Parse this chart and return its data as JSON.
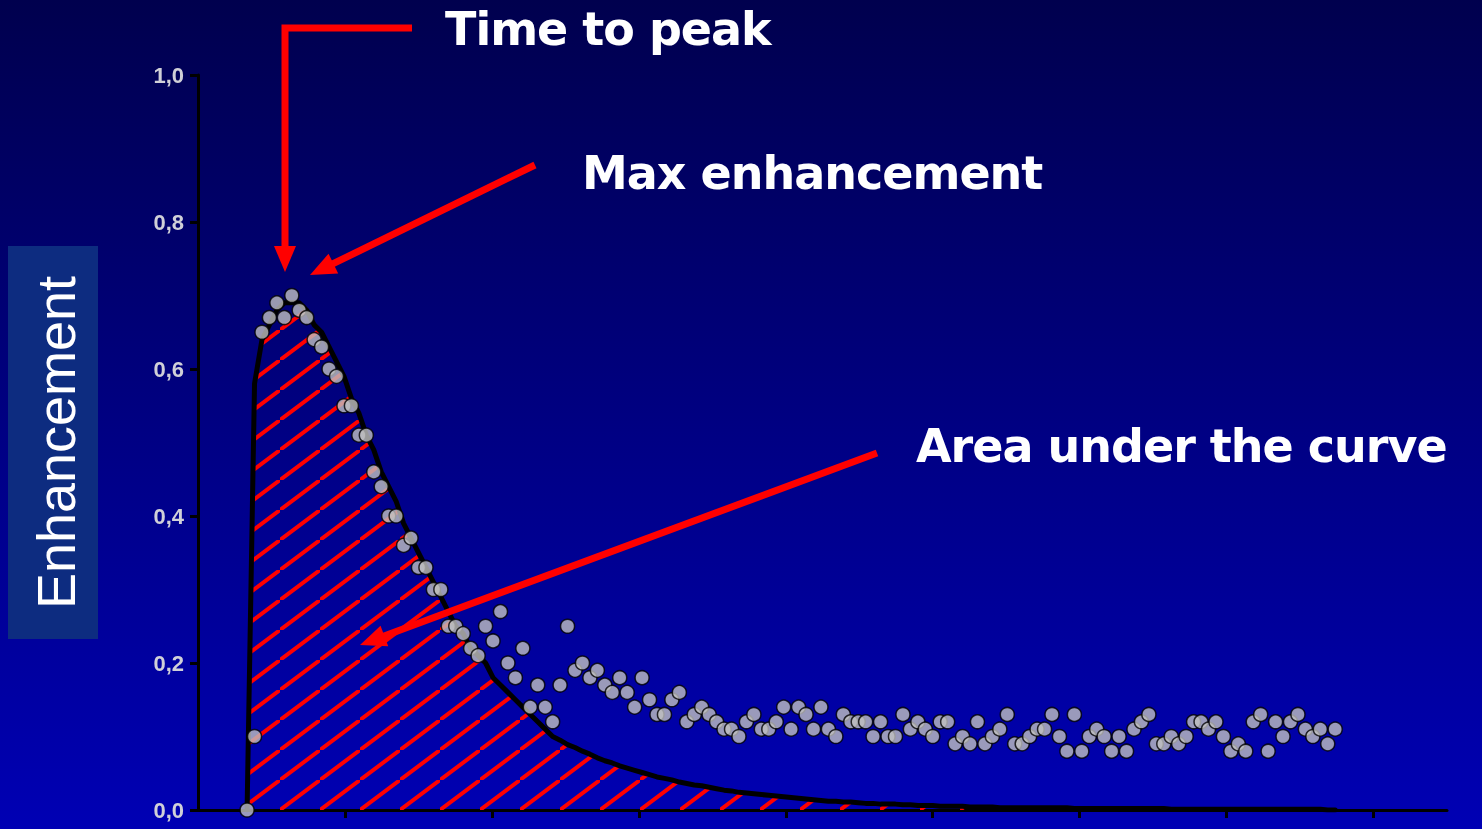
{
  "chart_data": {
    "type": "scatter",
    "ylabel": "Enhancement",
    "annotations": [
      "Time to peak",
      "Max enhancement",
      "Area under the curve"
    ],
    "categories": [
      null,
      null,
      null,
      null,
      null,
      null,
      null,
      null,
      null,
      null,
      null,
      null,
      null,
      null,
      null,
      null,
      null,
      null,
      null,
      null,
      null,
      null,
      null,
      null,
      null,
      null,
      null,
      null,
      null,
      null,
      null,
      null,
      null,
      null,
      null,
      null,
      null,
      null,
      null,
      null,
      null,
      null,
      null,
      null,
      null,
      null,
      null,
      null,
      null,
      null,
      null,
      null,
      null,
      null,
      null,
      null,
      null,
      null,
      null,
      null,
      null,
      null,
      null,
      null,
      null,
      null,
      null,
      null,
      null,
      null,
      null,
      null,
      null,
      null,
      null,
      null,
      null,
      null,
      null,
      null,
      null,
      null,
      null,
      null,
      null,
      null,
      null,
      null,
      null,
      null,
      null,
      null,
      null,
      null,
      null,
      null,
      null,
      null,
      null,
      null,
      null,
      null,
      null,
      null,
      null,
      null,
      null,
      null,
      null,
      null,
      null,
      null,
      null,
      null,
      null,
      null,
      null,
      null,
      null,
      null,
      null,
      null,
      null,
      null,
      null,
      null,
      null,
      null,
      null,
      null,
      null,
      null,
      null,
      null,
      null,
      null,
      null,
      null,
      null,
      null,
      null,
      null,
      null,
      null,
      null,
      null,
      null
    ],
    "ylim": [
      0,
      1
    ],
    "yticks": [
      {
        "value": 0,
        "label": "0,0"
      },
      {
        "value": 0.2,
        "label": "0,2"
      },
      {
        "value": 0.4,
        "label": "0,4"
      },
      {
        "value": 0.6,
        "label": "0,6"
      },
      {
        "value": 0.8,
        "label": "0,8"
      },
      {
        "value": 1,
        "label": "1,0"
      }
    ],
    "tick_labels": "y",
    "grid": false,
    "series": [
      {
        "type": "scatter",
        "color": "#c0c0c0",
        "marker": "circle",
        "values": [
          0.0,
          0.1,
          0.65,
          0.67,
          0.69,
          0.67,
          0.7,
          0.68,
          0.67,
          0.64,
          0.63,
          0.6,
          0.59,
          0.55,
          0.55,
          0.51,
          0.51,
          0.46,
          0.44,
          0.4,
          0.4,
          0.36,
          0.37,
          0.33,
          0.33,
          0.3,
          0.3,
          0.25,
          0.25,
          0.24,
          0.22,
          0.21,
          0.25,
          0.23,
          0.27,
          0.2,
          0.18,
          0.22,
          0.14,
          0.17,
          0.14,
          0.12,
          0.17,
          0.25,
          0.19,
          0.2,
          0.18,
          0.19,
          0.17,
          0.16,
          0.18,
          0.16,
          0.14,
          0.18,
          0.15,
          0.13,
          0.13,
          0.15,
          0.16,
          0.12,
          0.13,
          0.14,
          0.13,
          0.12,
          0.11,
          0.11,
          0.1,
          0.12,
          0.13,
          0.11,
          0.11,
          0.12,
          0.14,
          0.11,
          0.14,
          0.13,
          0.11,
          0.14,
          0.11,
          0.1,
          0.13,
          0.12,
          0.12,
          0.12,
          0.1,
          0.12,
          0.1,
          0.1,
          0.13,
          0.11,
          0.12,
          0.11,
          0.1,
          0.12,
          0.12,
          0.09,
          0.1,
          0.09,
          0.12,
          0.09,
          0.1,
          0.11,
          0.13,
          0.09,
          0.09,
          0.1,
          0.11,
          0.11,
          0.13,
          0.1,
          0.08,
          0.13,
          0.08,
          0.1,
          0.11,
          0.1,
          0.08,
          0.1,
          0.08,
          0.11,
          0.12,
          0.13,
          0.09,
          0.09,
          0.1,
          0.09,
          0.1,
          0.12,
          0.12,
          0.11,
          0.12,
          0.1,
          0.08,
          0.09,
          0.08,
          0.12,
          0.13,
          0.08,
          0.12,
          0.1,
          0.12,
          0.13,
          0.11,
          0.1,
          0.11,
          0.09,
          0.11
        ]
      },
      {
        "type": "area",
        "color": "#000000",
        "marker": "none",
        "values": [
          0,
          0.58,
          0.64,
          0.66,
          0.68,
          0.69,
          0.69,
          0.69,
          0.68,
          0.66,
          0.65,
          0.63,
          0.61,
          0.59,
          0.56,
          0.54,
          0.51,
          0.49,
          0.46,
          0.44,
          0.42,
          0.39,
          0.37,
          0.35,
          0.33,
          0.31,
          0.29,
          0.27,
          0.25,
          0.24,
          0.22,
          0.21,
          0.2,
          0.18,
          0.17,
          0.16,
          0.15,
          0.14,
          0.13,
          0.12,
          0.11,
          0.1,
          0.095,
          0.089,
          0.085,
          0.08,
          0.076,
          0.071,
          0.067,
          0.064,
          0.06,
          0.057,
          0.054,
          0.051,
          0.048,
          0.045,
          0.043,
          0.041,
          0.038,
          0.036,
          0.034,
          0.033,
          0.031,
          0.029,
          0.027,
          0.026,
          0.024,
          0.023,
          0.022,
          0.021,
          0.02,
          0.019,
          0.018,
          0.017,
          0.016,
          0.015,
          0.014,
          0.013,
          0.012,
          0.012,
          0.011,
          0.011,
          0.01,
          0.009,
          0.009,
          0.008,
          0.008,
          0.008,
          0.007,
          0.007,
          0.006,
          0.006,
          0.006,
          0.005,
          0.005,
          0.005,
          0.005,
          0.004,
          0.004,
          0.004,
          0.004,
          0.003,
          0.003,
          0.003,
          0.003,
          0.003,
          0.003,
          0.003,
          0.003,
          0.003,
          0.003,
          0.002,
          0.002,
          0.002,
          0.002,
          0.002,
          0.002,
          0.002,
          0.002,
          0.002,
          0.002,
          0.002,
          0.002,
          0.002,
          0.001,
          0.001,
          0.001,
          0.001,
          0.001,
          0.001,
          0.001,
          0.001,
          0.001,
          0.001,
          0.001,
          0.001,
          0.001,
          0.001,
          0.001,
          0.001,
          0.001,
          0.001,
          0.001,
          0.001,
          0.001,
          0,
          0
        ]
      }
    ]
  }
}
